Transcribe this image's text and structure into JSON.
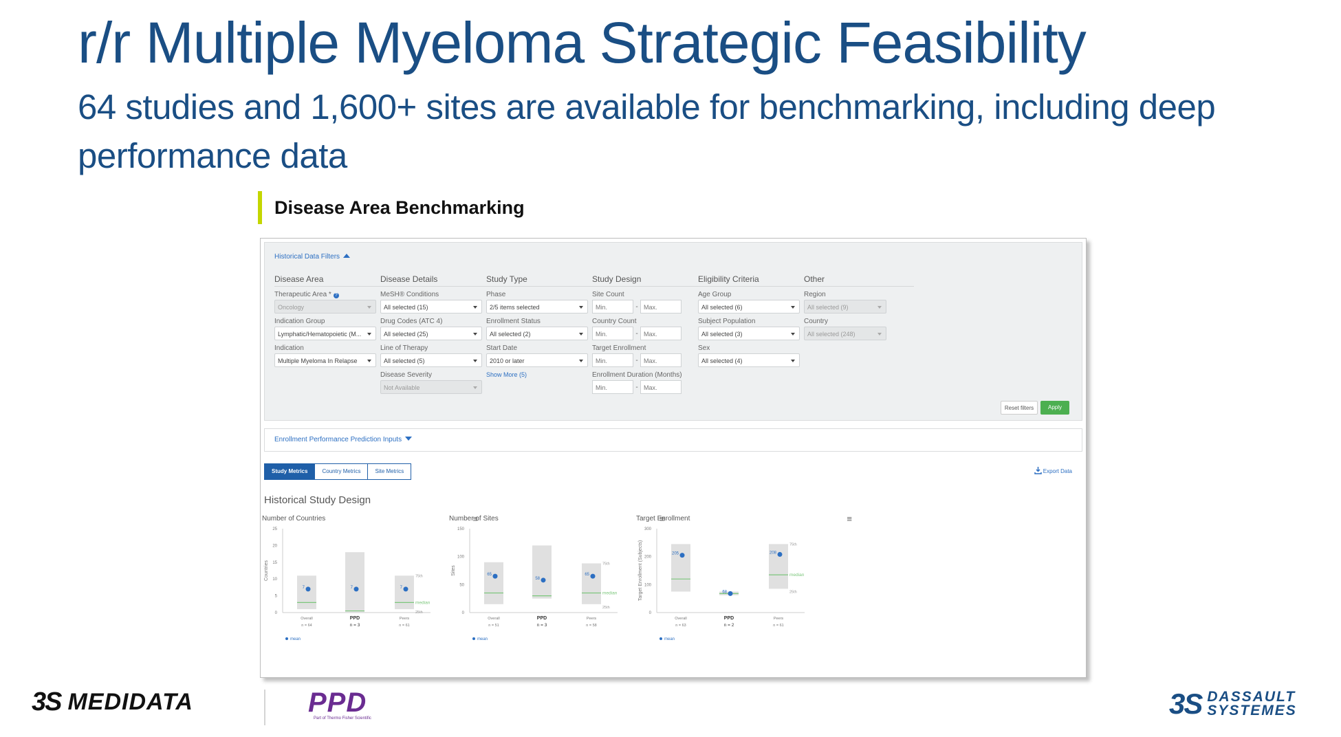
{
  "slide": {
    "title": "r/r Multiple Myeloma Strategic Feasibility",
    "subtitle": "64 studies and 1,600+ sites are available for benchmarking, including deep performance data",
    "section": "Disease Area Benchmarking"
  },
  "filters": {
    "toggle_label": "Historical Data Filters",
    "columns": [
      {
        "title": "Disease Area",
        "fields": [
          {
            "label": "Therapeutic Area *",
            "help": "?",
            "value": "Oncology",
            "disabled": true
          },
          {
            "label": "Indication Group",
            "value": "Lymphatic/Hematopoietic (M..."
          },
          {
            "label": "Indication",
            "value": "Multiple Myeloma In Relapse"
          }
        ]
      },
      {
        "title": "Disease Details",
        "fields": [
          {
            "label": "MeSH® Conditions",
            "value": "All selected (15)"
          },
          {
            "label": "Drug Codes (ATC 4)",
            "value": "All selected (25)"
          },
          {
            "label": "Line of Therapy",
            "value": "All selected (5)"
          },
          {
            "label": "Disease Severity",
            "value": "Not Available",
            "disabled": true
          }
        ]
      },
      {
        "title": "Study Type",
        "fields": [
          {
            "label": "Phase",
            "value": "2/5 items selected"
          },
          {
            "label": "Enrollment Status",
            "value": "All selected (2)"
          },
          {
            "label": "Start Date",
            "value": "2010 or later"
          }
        ],
        "show_more": "Show More (5)"
      },
      {
        "title": "Study Design",
        "ranges": [
          {
            "label": "Site Count",
            "min": "Min.",
            "max": "Max."
          },
          {
            "label": "Country Count",
            "min": "Min.",
            "max": "Max."
          },
          {
            "label": "Target Enrollment",
            "min": "Min.",
            "max": "Max."
          },
          {
            "label": "Enrollment Duration (Months)",
            "min": "Min.",
            "max": "Max."
          }
        ]
      },
      {
        "title": "Eligibility Criteria",
        "fields": [
          {
            "label": "Age Group",
            "value": "All selected (6)"
          },
          {
            "label": "Subject Population",
            "value": "All selected (3)"
          },
          {
            "label": "Sex",
            "value": "All selected (4)"
          }
        ]
      },
      {
        "title": "Other",
        "fields": [
          {
            "label": "Region",
            "value": "All selected (9)",
            "disabled": true
          },
          {
            "label": "Country",
            "value": "All selected (248)",
            "disabled": true
          }
        ]
      }
    ],
    "reset_label": "Reset filters",
    "apply_label": "Apply",
    "apply_color": "#4caf50"
  },
  "enrollment_inputs": {
    "label": "Enrollment Performance Prediction Inputs"
  },
  "metric_tabs": [
    {
      "label": "Study Metrics",
      "active": true
    },
    {
      "label": "Country Metrics",
      "active": false
    },
    {
      "label": "Site Metrics",
      "active": false
    }
  ],
  "export_label": "Export Data",
  "historical_title": "Historical Study Design",
  "colors": {
    "brand_blue": "#1a4e84",
    "accent_green": "#c4d600",
    "mean_blue": "#2c6fc2",
    "median_green": "#7bc67b"
  },
  "logos": {
    "medidata_mark": "3S",
    "medidata": "MEDIDATA",
    "ppd": "PPD",
    "ppd_tag": "Part of Thermo Fisher Scientific",
    "dassault_mark": "3S",
    "dassault_line1": "DASSAULT",
    "dassault_line2": "SYSTEMES"
  },
  "chart_data": [
    {
      "type": "box",
      "title": "Number of Countries",
      "ylabel": "Countries",
      "ylim": [
        0,
        25
      ],
      "yticks": [
        0,
        5,
        10,
        15,
        20,
        25
      ],
      "categories": [
        "Overall",
        "PPD",
        "Peers"
      ],
      "n_labels": [
        "n = 64",
        "n = 3",
        "n = 61"
      ],
      "q25": [
        1,
        0,
        1
      ],
      "q75": [
        11,
        18,
        11
      ],
      "median": [
        3,
        0.5,
        3
      ],
      "mean": [
        7,
        7,
        7
      ],
      "mean_labels": [
        "7",
        "7",
        "7"
      ],
      "quartile_labels": {
        "q75": "75th",
        "median": "median",
        "q25": "25th"
      },
      "legend": "mean"
    },
    {
      "type": "box",
      "title": "Number of Sites",
      "ylabel": "Sites",
      "ylim": [
        0,
        150
      ],
      "yticks": [
        0,
        50,
        100,
        150
      ],
      "categories": [
        "Overall",
        "PPD",
        "Peers"
      ],
      "n_labels": [
        "n = 51",
        "n = 3",
        "n = 58"
      ],
      "q25": [
        15,
        25,
        15
      ],
      "q75": [
        90,
        120,
        88
      ],
      "median": [
        35,
        30,
        35
      ],
      "mean": [
        65,
        58,
        65
      ],
      "mean_labels": [
        "65",
        "58",
        "65"
      ],
      "quartile_labels": {
        "q75": "75th",
        "median": "median",
        "q25": "25th"
      },
      "legend": "mean"
    },
    {
      "type": "box",
      "title": "Target Enrollment",
      "ylabel": "Target Enrollment (Subjects)",
      "ylim": [
        0,
        300
      ],
      "yticks": [
        0,
        100,
        200,
        300
      ],
      "categories": [
        "Overall",
        "PPD",
        "Peers"
      ],
      "n_labels": [
        "n = 63",
        "n = 2",
        "n = 61"
      ],
      "q25": [
        75,
        62,
        85
      ],
      "q75": [
        245,
        75,
        245
      ],
      "median": [
        120,
        68,
        135
      ],
      "mean": [
        205,
        68,
        208
      ],
      "mean_labels": [
        "205",
        "68",
        "208"
      ],
      "quartile_labels": {
        "q75": "75th",
        "median": "median",
        "q25": "25th"
      },
      "legend": "mean"
    }
  ]
}
